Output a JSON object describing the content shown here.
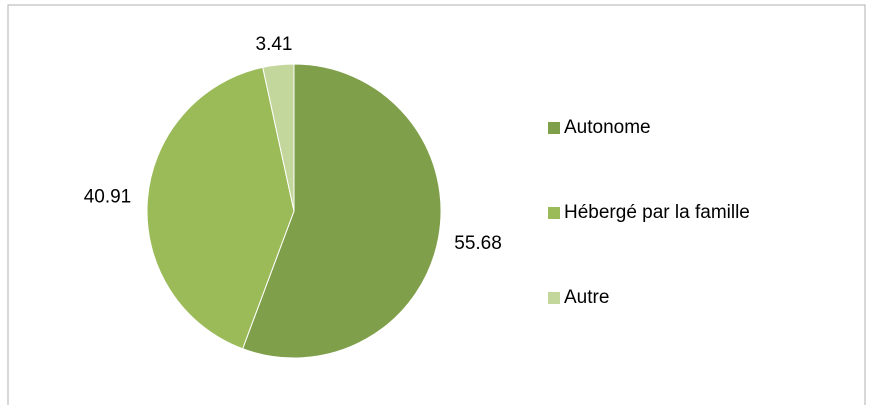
{
  "chart_data": {
    "type": "pie",
    "categories": [
      "Autonome",
      "Hébergé par la famille",
      "Autre"
    ],
    "values": [
      55.68,
      40.91,
      3.41
    ],
    "colors": [
      "#7f9f4a",
      "#9bbb59",
      "#c3d69b"
    ],
    "legend": "right"
  }
}
